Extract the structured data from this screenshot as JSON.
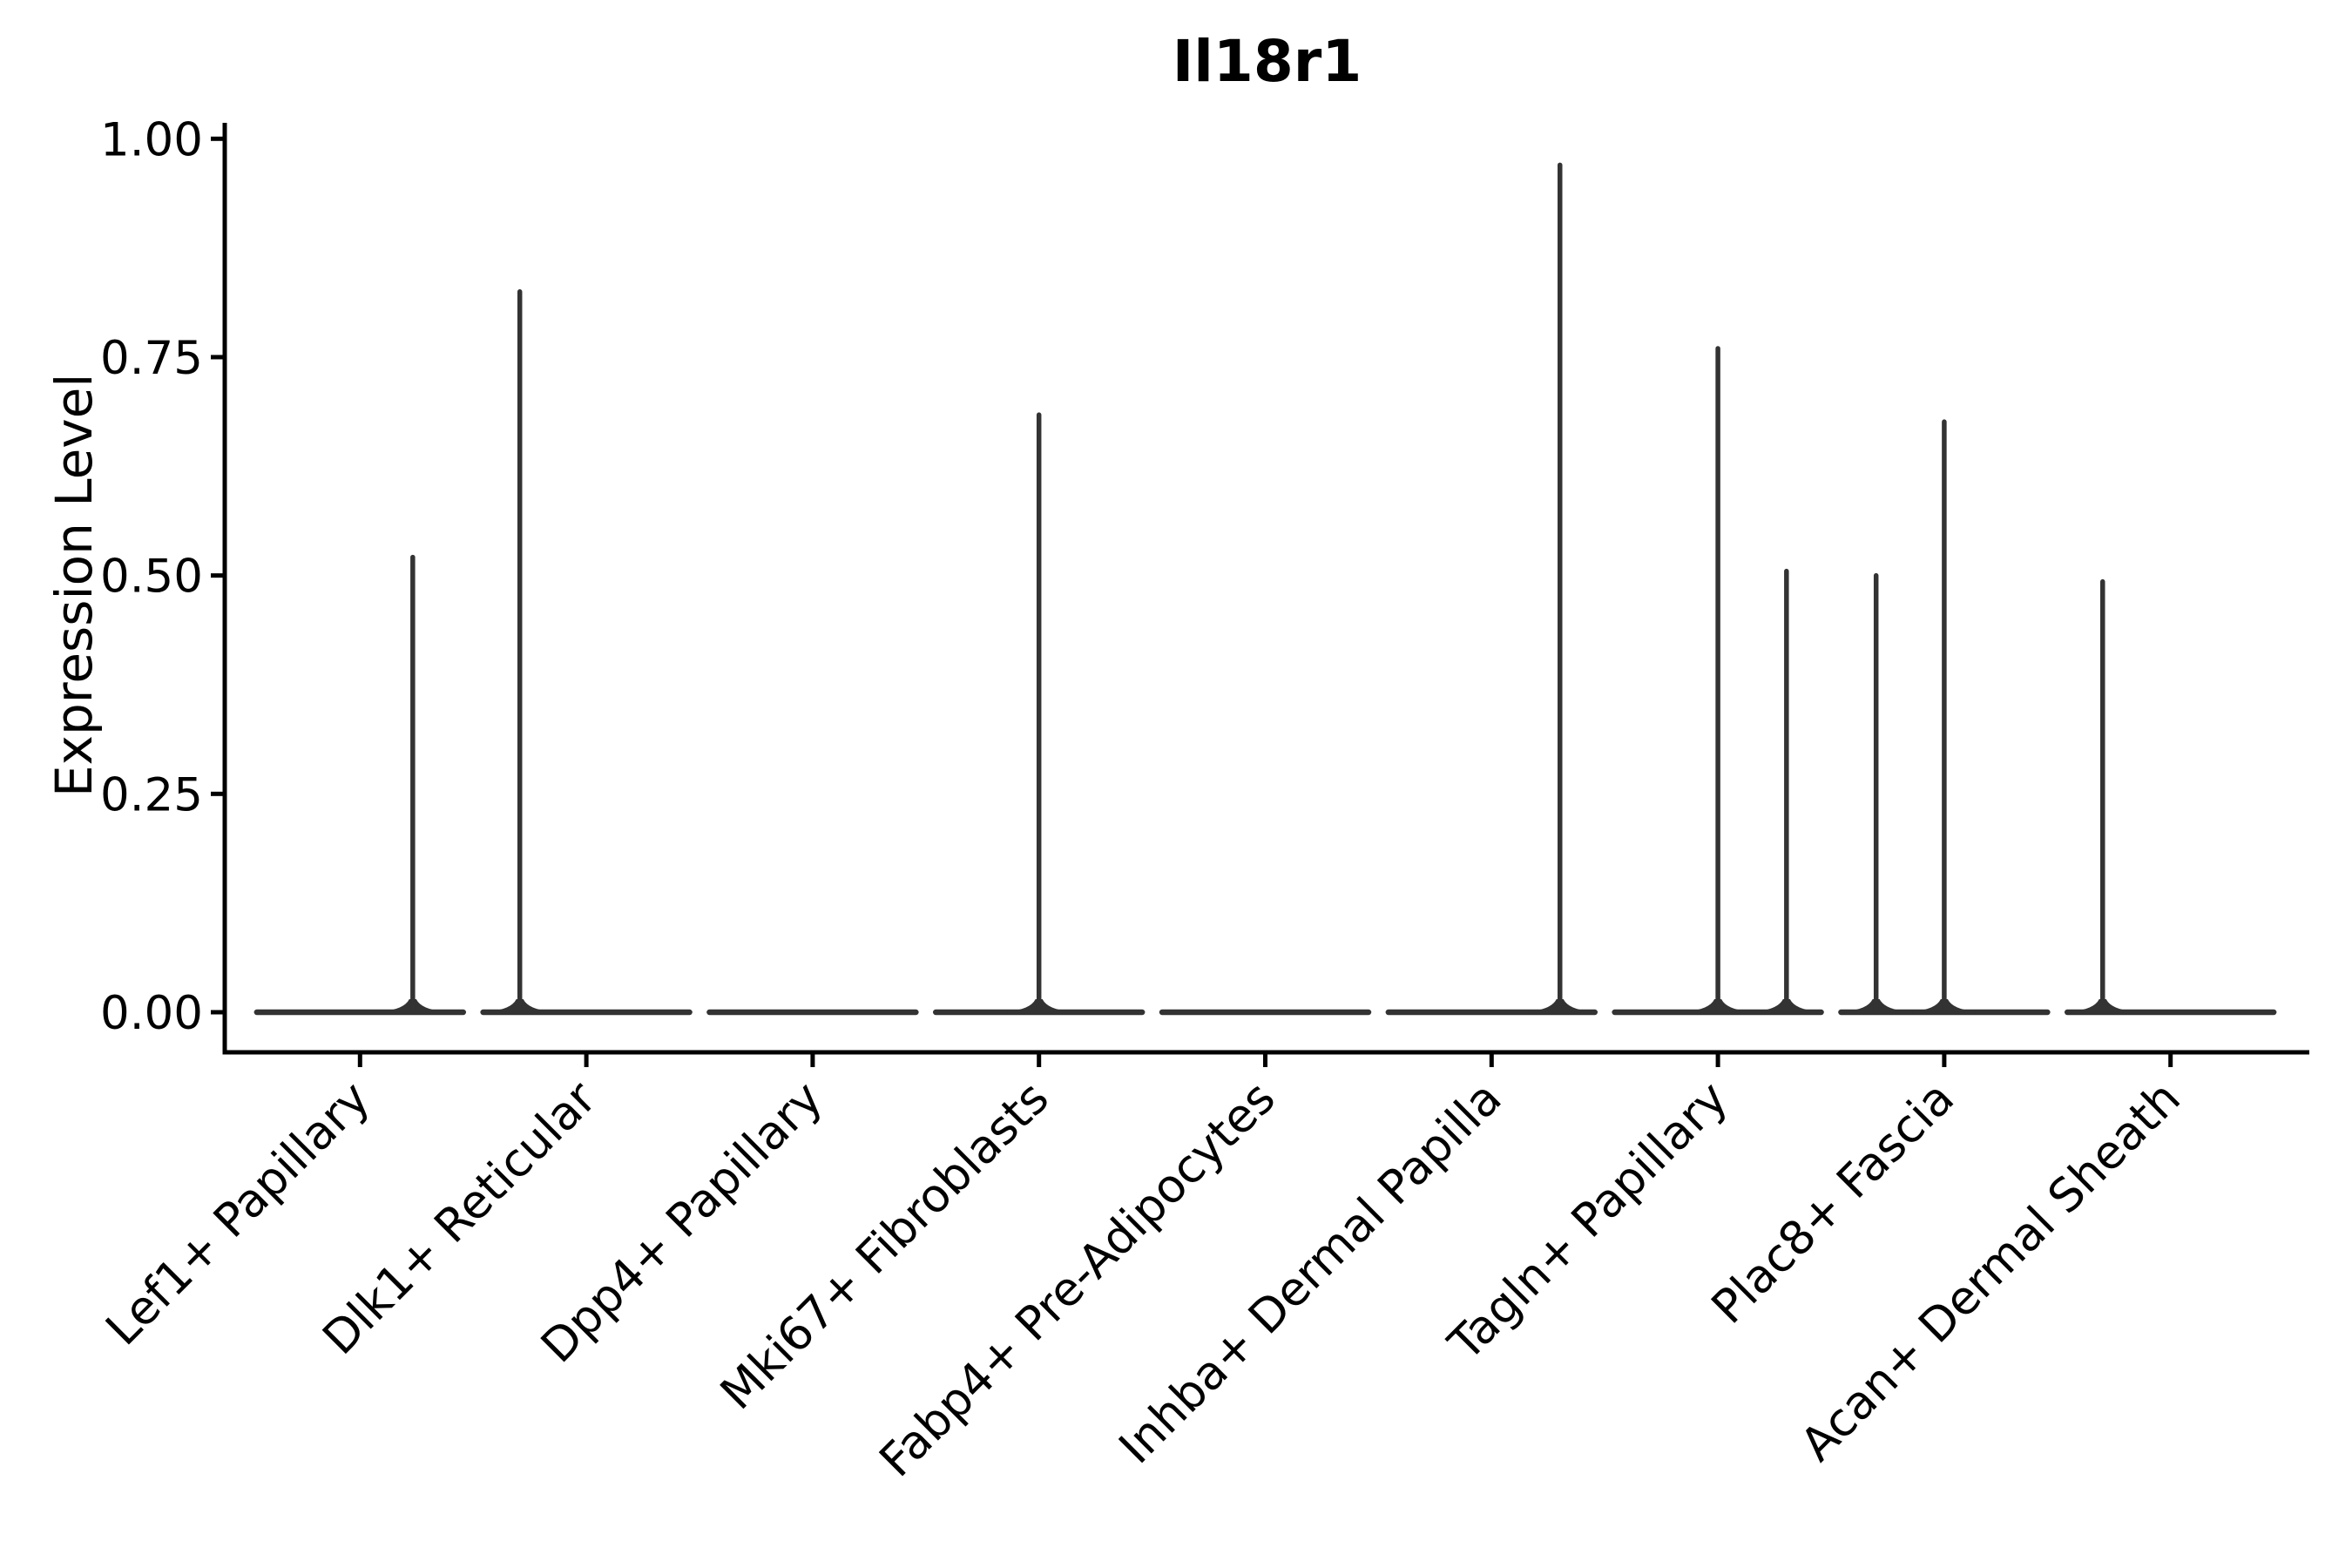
{
  "chart_data": {
    "type": "violin",
    "title": "Il18r1",
    "ylabel": "Expression Level",
    "xlabel": "",
    "grid": false,
    "legend": "none",
    "ylim": [
      -0.046,
      1.018
    ],
    "ytick_values": [
      0,
      0.25,
      0.5,
      0.75,
      1.0
    ],
    "ytick_labels": [
      "0.00",
      "0.25",
      "0.50",
      "0.75",
      "1.00"
    ],
    "categories": [
      "Lef1+ Papillary",
      "Dlk1+ Reticular",
      "Dpp4+ Papillary",
      "Mki67+ Fibroblasts",
      "Fabp4+ Pre-Adipocytes",
      "Inhba+ Dermal Papilla",
      "Tagln+ Papillary",
      "Plac8+ Fascia",
      "Acan+ Dermal Sheath"
    ],
    "series": [
      {
        "category": "Lef1+ Papillary",
        "base_width": 0.912,
        "base_value": 0,
        "spikes": [
          {
            "value": 0.521,
            "dx": 0.233
          }
        ]
      },
      {
        "category": "Dlk1+ Reticular",
        "base_width": 0.912,
        "base_value": 0,
        "spikes": [
          {
            "value": 0.825,
            "dx": -0.294
          }
        ]
      },
      {
        "category": "Dpp4+ Papillary",
        "base_width": 0.912,
        "base_value": 0,
        "spikes": []
      },
      {
        "category": "Mki67+ Fibroblasts",
        "base_width": 0.912,
        "base_value": 0,
        "spikes": [
          {
            "value": 0.684,
            "dx": 0.0
          }
        ]
      },
      {
        "category": "Fabp4+ Pre-Adipocytes",
        "base_width": 0.912,
        "base_value": 0,
        "spikes": []
      },
      {
        "category": "Inhba+ Dermal Papilla",
        "base_width": 0.912,
        "base_value": 0,
        "spikes": [
          {
            "value": 0.97,
            "dx": 0.302
          }
        ]
      },
      {
        "category": "Tagln+ Papillary",
        "base_width": 0.912,
        "base_value": 0,
        "spikes": [
          {
            "value": 0.76,
            "dx": 0.0
          },
          {
            "value": 0.505,
            "dx": 0.303
          }
        ]
      },
      {
        "category": "Plac8+ Fascia",
        "base_width": 0.912,
        "base_value": 0,
        "spikes": [
          {
            "value": 0.5,
            "dx": -0.301
          },
          {
            "value": 0.676,
            "dx": 0.0
          }
        ]
      },
      {
        "category": "Acan+ Dermal Sheath",
        "base_width": 0.912,
        "base_value": 0,
        "spikes": [
          {
            "value": 0.493,
            "dx": -0.3
          }
        ]
      }
    ],
    "colors": {
      "violin": "#333333",
      "axis": "#000000",
      "text": "#000000",
      "background": "#ffffff"
    }
  }
}
